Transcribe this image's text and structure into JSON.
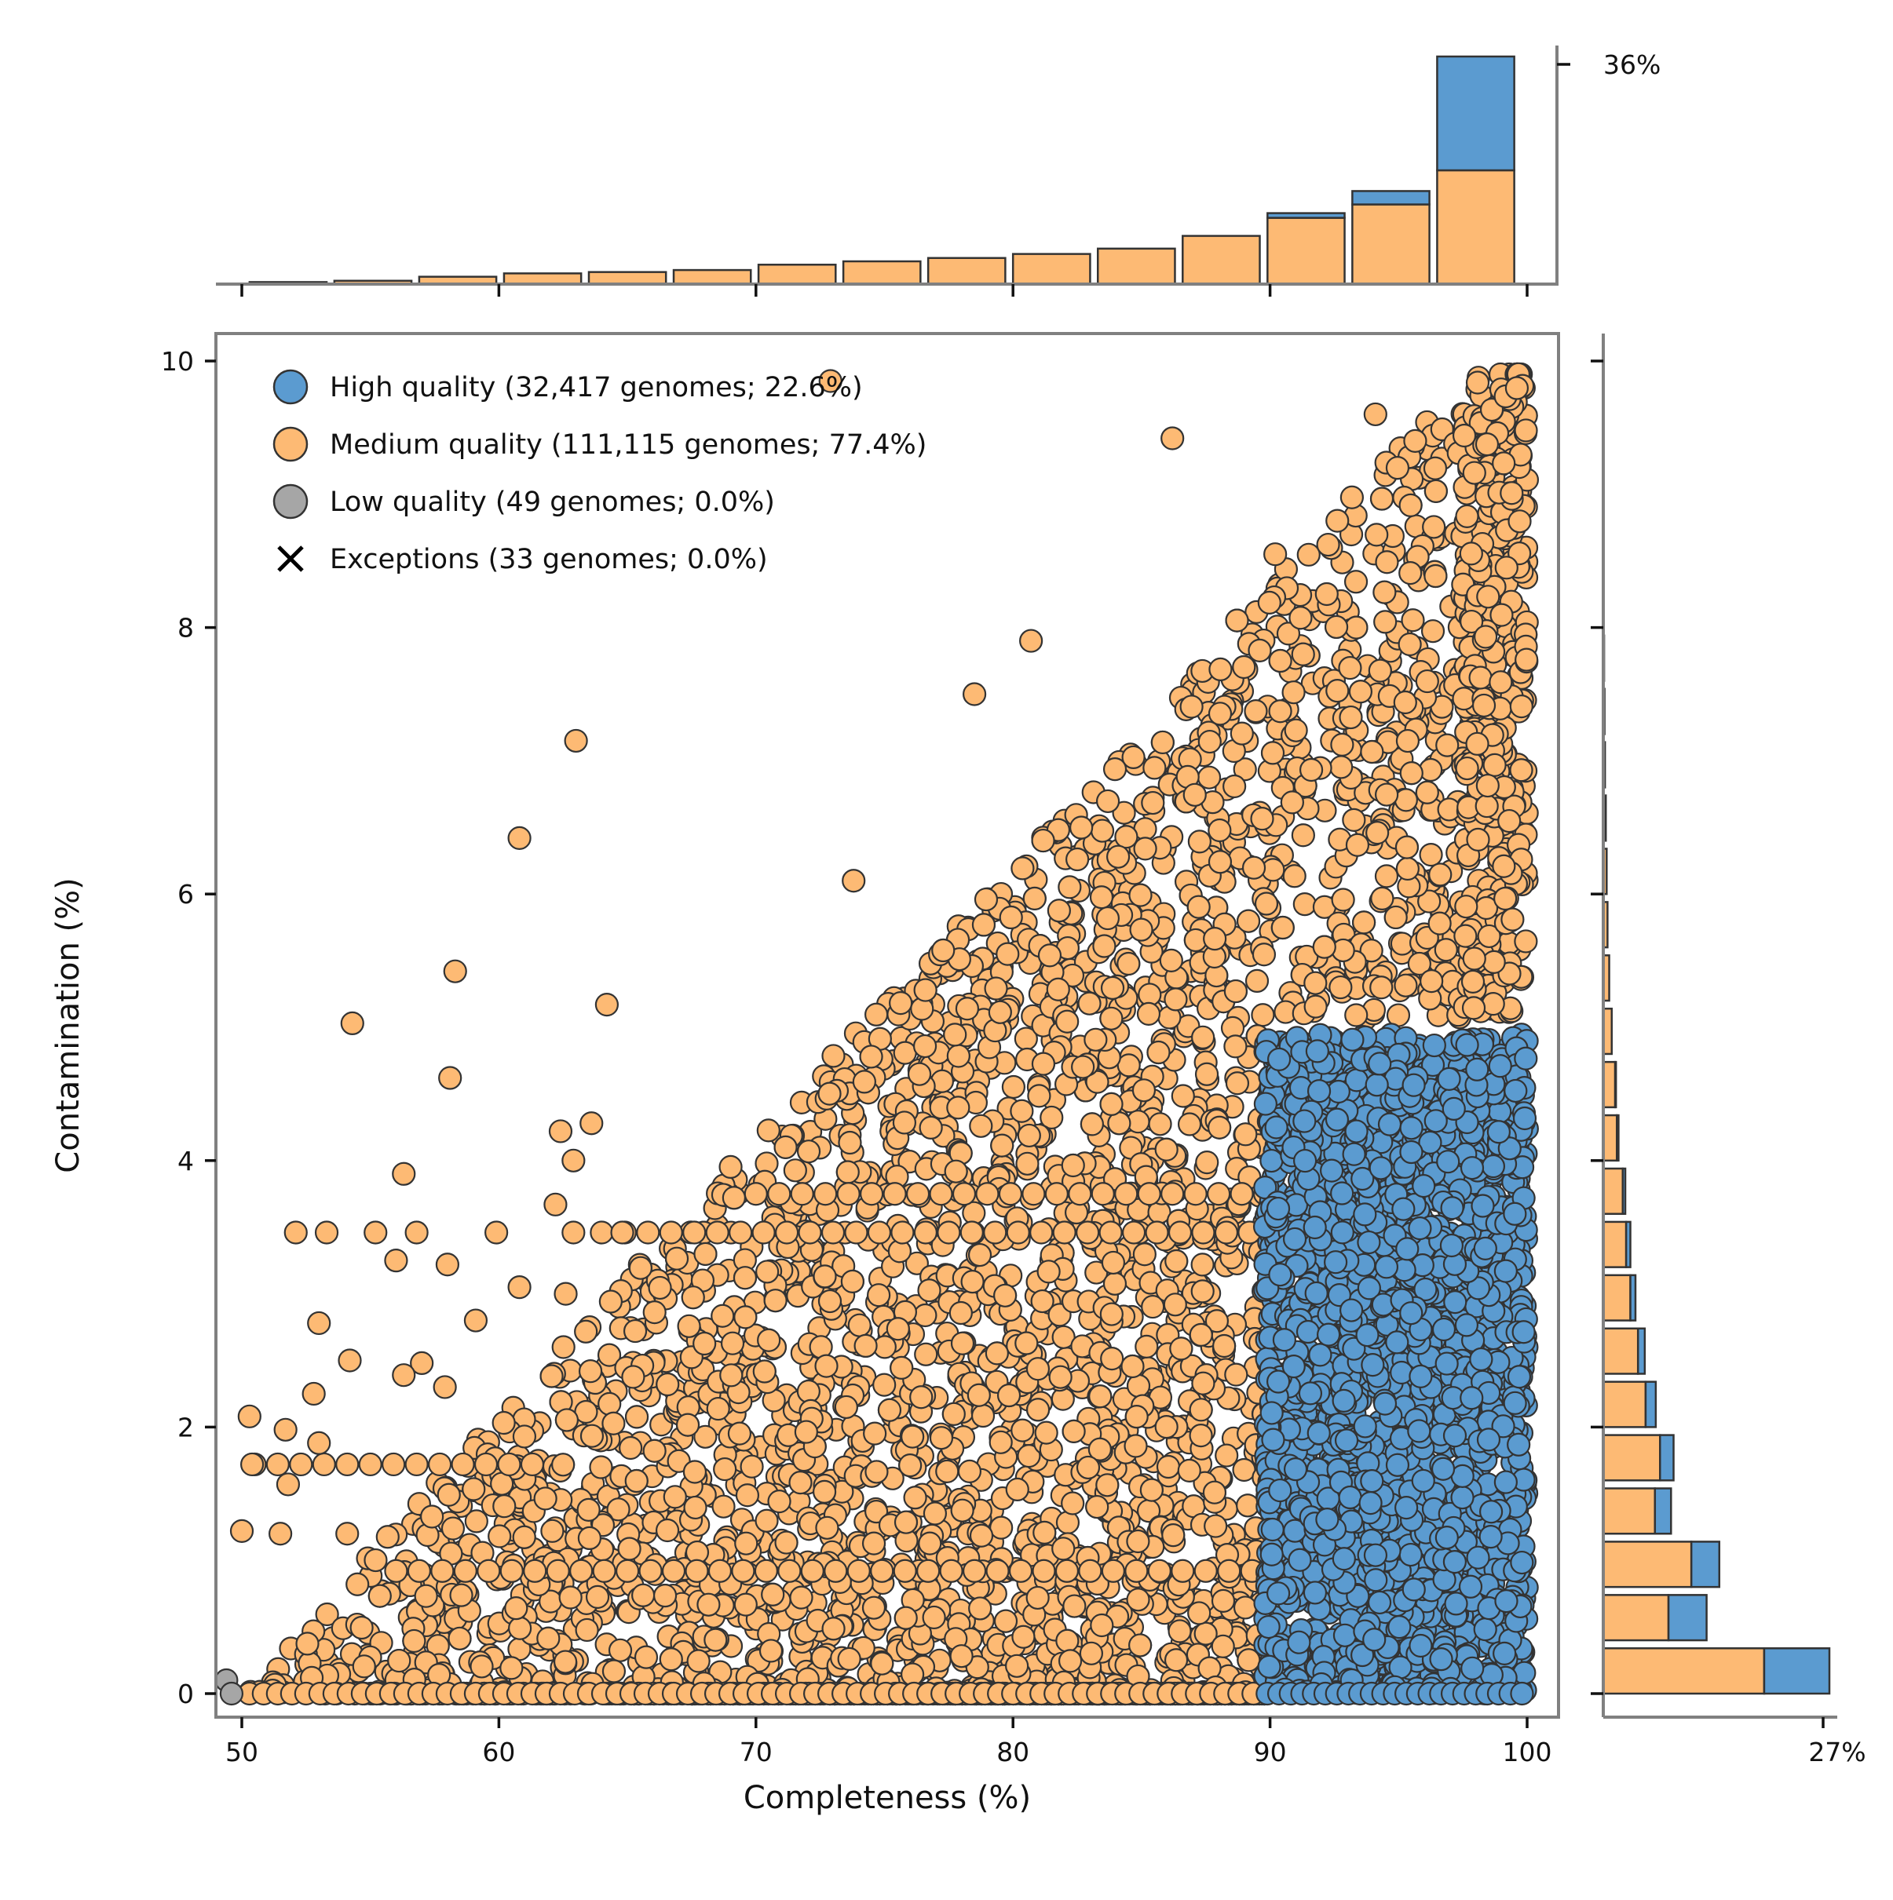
{
  "chart_data": {
    "type": "scatter",
    "xlabel": "Completeness (%)",
    "ylabel": "Contamination (%)",
    "xlim": [
      49,
      101
    ],
    "ylim": [
      -0.2,
      10.2
    ],
    "xticks": [
      "50",
      "60",
      "70",
      "80",
      "90",
      "100"
    ],
    "yticks": [
      "0",
      "2",
      "4",
      "6",
      "8",
      "10"
    ],
    "legend": {
      "position": "top-left",
      "entries": [
        {
          "label": "High quality (32,417 genomes; 22.6%)",
          "marker": "circle",
          "color": "#5b9bd0"
        },
        {
          "label": "Medium quality (111,115 genomes; 77.4%)",
          "marker": "circle",
          "color": "#fdba74"
        },
        {
          "label": "Low quality (49 genomes; 0.0%)",
          "marker": "circle",
          "color": "#a6a6a6"
        },
        {
          "label": "Exceptions (33 genomes; 0.0%)",
          "marker": "x",
          "color": "#000000"
        }
      ]
    },
    "series": [
      {
        "name": "High quality",
        "color": "#5b9bd0",
        "region": {
          "x": [
            90,
            100
          ],
          "y": [
            0,
            5
          ]
        }
      },
      {
        "name": "Medium quality",
        "color": "#fdba74",
        "region": {
          "x": [
            50,
            100
          ],
          "y_max": "0.2 × (Completeness − 50)"
        },
        "outliers": [
          [
            72.9,
            9.85
          ],
          [
            86.2,
            9.42
          ],
          [
            94.1,
            9.6
          ],
          [
            90.2,
            8.55
          ],
          [
            80.7,
            7.9
          ],
          [
            78.5,
            7.5
          ],
          [
            63.0,
            7.15
          ],
          [
            60.8,
            6.42
          ],
          [
            73.8,
            6.1
          ],
          [
            58.3,
            5.42
          ],
          [
            64.2,
            5.17
          ],
          [
            54.3,
            5.03
          ],
          [
            58.1,
            4.62
          ],
          [
            62.4,
            4.22
          ],
          [
            63.6,
            4.28
          ],
          [
            62.9,
            4.0
          ],
          [
            56.3,
            3.9
          ],
          [
            62.2,
            3.67
          ],
          [
            52.1,
            3.46
          ],
          [
            53.3,
            3.46
          ],
          [
            55.2,
            3.46
          ],
          [
            56.8,
            3.46
          ],
          [
            59.9,
            3.46
          ],
          [
            62.9,
            3.46
          ],
          [
            64.8,
            3.46
          ],
          [
            56.0,
            3.25
          ],
          [
            58.0,
            3.22
          ],
          [
            60.8,
            3.05
          ],
          [
            62.6,
            3.0
          ],
          [
            59.1,
            2.8
          ],
          [
            53.0,
            2.78
          ],
          [
            54.2,
            2.5
          ],
          [
            57.0,
            2.48
          ],
          [
            56.3,
            2.39
          ],
          [
            57.9,
            2.3
          ],
          [
            52.8,
            2.25
          ],
          [
            50.3,
            2.08
          ],
          [
            51.7,
            1.98
          ],
          [
            53.0,
            1.88
          ],
          [
            50.4,
            1.72
          ],
          [
            51.8,
            1.57
          ],
          [
            50.0,
            1.22
          ],
          [
            51.5,
            1.2
          ],
          [
            54.1,
            1.2
          ]
        ]
      },
      {
        "name": "Low quality",
        "color": "#a6a6a6",
        "points": [
          [
            49.4,
            0.1
          ],
          [
            49.6,
            0.0
          ]
        ]
      }
    ],
    "top_marginal": {
      "type": "stacked_histogram",
      "axis_label": "36%",
      "bins_start": [
        50.3,
        53.6,
        56.9,
        60.2,
        63.5,
        66.8,
        70.1,
        73.4,
        76.7,
        80.0,
        83.3,
        86.6,
        89.9,
        93.2,
        96.5
      ],
      "medium": [
        0.3,
        0.5,
        1.1,
        1.6,
        1.8,
        2.1,
        2.9,
        3.4,
        3.9,
        4.5,
        5.3,
        7.2,
        9.9,
        11.9,
        17.0
      ],
      "high": [
        0,
        0,
        0,
        0,
        0,
        0,
        0,
        0,
        0,
        0,
        0,
        0,
        0.7,
        2.0,
        17.0
      ]
    },
    "right_marginal": {
      "type": "stacked_histogram",
      "axis_label": "27%",
      "bins_start": [
        0.0,
        0.4,
        0.8,
        1.2,
        1.6,
        2.0,
        2.4,
        2.8,
        3.2,
        3.6,
        4.0,
        4.4,
        4.8,
        5.2,
        5.6,
        6.0,
        6.4,
        6.8,
        7.2,
        7.6
      ],
      "medium": [
        19.0,
        7.7,
        10.4,
        6.1,
        6.7,
        5.0,
        4.1,
        3.2,
        2.7,
        2.3,
        1.6,
        1.4,
        1.0,
        0.7,
        0.5,
        0.4,
        0.3,
        0.2,
        0.15,
        0.1
      ],
      "high": [
        7.7,
        4.5,
        3.3,
        1.9,
        1.6,
        1.2,
        0.8,
        0.6,
        0.5,
        0.3,
        0.2,
        0.1,
        0,
        0,
        0,
        0,
        0,
        0,
        0,
        0
      ]
    }
  }
}
